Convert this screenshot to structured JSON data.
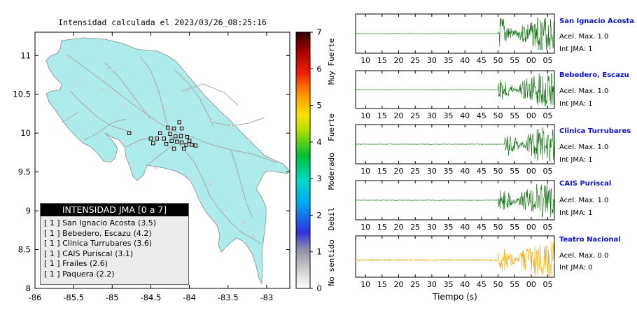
{
  "map": {
    "title": "Intensidad calculada el 2023/03/26_08:25:16",
    "x_ticks": [
      "-86",
      "-85.5",
      "-85",
      "-84.5",
      "-84",
      "-83.5",
      "-83"
    ],
    "y_ticks": [
      "11",
      "10.5",
      "10",
      "9.5",
      "9",
      "8.5",
      "8"
    ],
    "xlim": [
      -86,
      -82.7
    ],
    "ylim": [
      8,
      11.3
    ],
    "land_color": "#aeebeb"
  },
  "colorbar": {
    "ticks": [
      "0",
      "1",
      "2",
      "3",
      "4",
      "5",
      "6",
      "7"
    ],
    "labels": [
      "No sentido",
      "Debil",
      "Moderado",
      "Fuerte",
      "Muy Fuerte"
    ]
  },
  "legend": {
    "title": "INTENSIDAD JMA [0 a 7]",
    "items": [
      {
        "jma": "[ 1 ]",
        "name": "San Ignacio Acosta (3.5)"
      },
      {
        "jma": "[ 1 ]",
        "name": "Bebedero, Escazu (4.2)"
      },
      {
        "jma": "[ 1 ]",
        "name": "Clinica Turrubares (3.6)"
      },
      {
        "jma": "[ 1 ]",
        "name": "CAIS Puriscal (3.1)"
      },
      {
        "jma": "[ 1 ]",
        "name": "Frailes (2.6)"
      },
      {
        "jma": "[ 1 ]",
        "name": "Paquera (2.2)"
      }
    ]
  },
  "traces": {
    "xlabel": "Tiempo (s)",
    "x_ticks": [
      "10",
      "15",
      "20",
      "25",
      "30",
      "35",
      "40",
      "45",
      "50",
      "55",
      "00",
      "05"
    ],
    "stations": [
      {
        "name": "San Ignacio Acosta",
        "accel": "Acel. Max. 1.0",
        "jma": "Int JMA: 1",
        "color": "#0a6a0a",
        "onset": 50
      },
      {
        "name": "Bebedero, Escazu",
        "accel": "Acel. Max. 1.0",
        "jma": "Int JMA: 1",
        "color": "#0a6a0a",
        "onset": 50
      },
      {
        "name": "Clinica Turrubares",
        "accel": "Acel. Max. 1.0",
        "jma": "Int JMA: 1",
        "color": "#0a6a0a",
        "onset": 52
      },
      {
        "name": "CAIS Puriscal",
        "accel": "Acel. Max. 1.0",
        "jma": "Int JMA: 1",
        "color": "#0a6a0a",
        "onset": 50
      },
      {
        "name": "Teatro Nacional",
        "accel": "Acel. Max. 0.0",
        "jma": "Int JMA: 0",
        "color": "#f0a800",
        "onset": 50
      }
    ]
  },
  "chart_data": [
    {
      "type": "scatter",
      "title": "Intensidad calculada el 2023/03/26_08:25:16",
      "xlabel": "",
      "ylabel": "",
      "xlim": [
        -86,
        -82.7
      ],
      "ylim": [
        8,
        11.3
      ],
      "grid": false,
      "legend_position": "bottom-left",
      "series": [
        {
          "name": "",
          "points": [
            [
              -84.13,
              10.14
            ],
            [
              -84.28,
              10.07
            ],
            [
              -84.2,
              10.06
            ],
            [
              -84.1,
              10.06
            ],
            [
              -84.38,
              10.0
            ],
            [
              -84.25,
              9.99
            ],
            [
              -84.18,
              9.96
            ],
            [
              -84.11,
              9.96
            ],
            [
              -84.03,
              9.95
            ],
            [
              -84.42,
              9.93
            ],
            [
              -84.33,
              9.93
            ],
            [
              -84.23,
              9.9
            ],
            [
              -84.16,
              9.89
            ],
            [
              -84.1,
              9.88
            ],
            [
              -84.04,
              9.85
            ],
            [
              -83.97,
              9.85
            ],
            [
              -84.2,
              9.8
            ],
            [
              -84.07,
              9.8
            ],
            [
              -84.5,
              9.93
            ],
            [
              -84.47,
              9.87
            ],
            [
              -84.3,
              9.86
            ],
            [
              -84.0,
              9.9
            ],
            [
              -83.92,
              9.84
            ],
            [
              -84.78,
              10.0
            ]
          ]
        }
      ]
    },
    {
      "type": "line",
      "title": "",
      "xlabel": "Tiempo (s)",
      "ylabel": "",
      "x": [
        "10",
        "15",
        "20",
        "25",
        "30",
        "35",
        "40",
        "45",
        "50",
        "55",
        "00",
        "05"
      ],
      "series": [
        {
          "name": "San Ignacio Acosta",
          "onset_label": "50"
        },
        {
          "name": "Bebedero, Escazu",
          "onset_label": "50"
        },
        {
          "name": "Clinica Turrubares",
          "onset_label": "52"
        },
        {
          "name": "CAIS Puriscal",
          "onset_label": "50"
        },
        {
          "name": "Teatro Nacional",
          "onset_label": "50"
        }
      ]
    }
  ]
}
